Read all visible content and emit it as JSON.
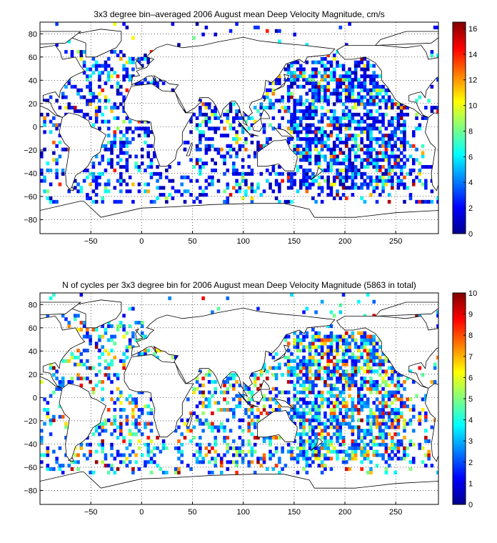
{
  "chart_data": [
    {
      "type": "heatmap",
      "title": "3x3 degree bin–averaged 2006 August mean Deep Velocity Magnitude, cm/s",
      "xlim": [
        -100,
        292
      ],
      "ylim": [
        -92,
        90
      ],
      "xticks": [
        -50,
        0,
        50,
        100,
        150,
        200,
        250
      ],
      "yticks": [
        -80,
        -60,
        -40,
        -20,
        0,
        20,
        40,
        60,
        80
      ],
      "grid": true,
      "colorbar": {
        "min": 0,
        "max": 16.5,
        "ticks": [
          0,
          2,
          4,
          6,
          8,
          10,
          12,
          14,
          16
        ],
        "colormap": "jet"
      },
      "seed": 11
    },
    {
      "type": "heatmap",
      "title": "N of cycles per 3x3 degree bin for 2006 August mean Deep Velocity Magnitude (5863 in total)",
      "xlim": [
        -100,
        292
      ],
      "ylim": [
        -92,
        90
      ],
      "xticks": [
        -50,
        0,
        50,
        100,
        150,
        200,
        250
      ],
      "yticks": [
        -80,
        -60,
        -40,
        -20,
        0,
        20,
        40,
        60,
        80
      ],
      "grid": true,
      "colorbar": {
        "min": 0,
        "max": 10,
        "ticks": [
          0,
          1,
          2,
          3,
          4,
          5,
          6,
          7,
          8,
          9,
          10
        ],
        "colormap": "jet"
      },
      "seed": 29
    }
  ]
}
